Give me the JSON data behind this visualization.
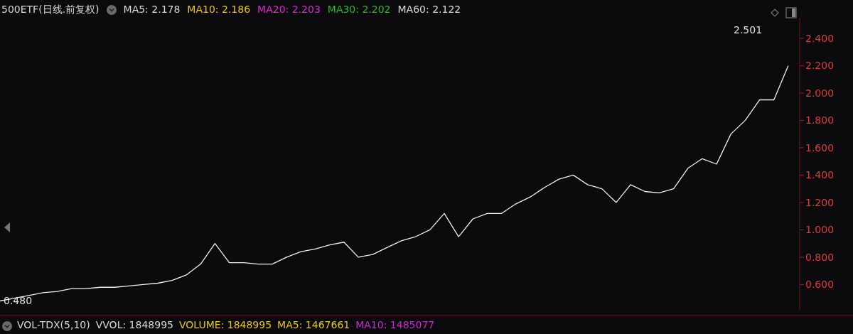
{
  "chart_data": {
    "type": "line",
    "title": "500ETF(日线.前复权)",
    "annotations": [
      "MA5: 2.178",
      "MA10: 2.186",
      "MA20: 2.203",
      "MA30: 2.202",
      "MA60: 2.122",
      "VOL-TDX(5,10)",
      "VVOL: 1848995",
      "VOLUME: 1848995",
      "MA5: 1467661",
      "MA10: 1485077",
      "2.501",
      {
        "text": "0.480",
        "y": 0.48
      }
    ],
    "categories": [
      null,
      null,
      null,
      null,
      null,
      null,
      null,
      null,
      null,
      null,
      null,
      null,
      null,
      null,
      null,
      null,
      null,
      null,
      null,
      null,
      null,
      null,
      null,
      null,
      null,
      null,
      null,
      null,
      null,
      null,
      null,
      null,
      null,
      null,
      null,
      null,
      null,
      null,
      null,
      null,
      null,
      null,
      null,
      null,
      null,
      null,
      null,
      null,
      null,
      null,
      null,
      null,
      null,
      null,
      null,
      null
    ],
    "series": [
      {
        "color": "#f0f0f0",
        "values": [
          0.48,
          0.5,
          0.52,
          0.54,
          0.55,
          0.57,
          0.57,
          0.58,
          0.58,
          0.59,
          0.6,
          0.61,
          0.63,
          0.67,
          0.75,
          0.9,
          0.76,
          0.76,
          0.75,
          0.75,
          0.8,
          0.84,
          0.86,
          0.89,
          0.91,
          0.8,
          0.82,
          0.87,
          0.92,
          0.95,
          1.0,
          1.12,
          0.95,
          1.08,
          1.12,
          1.12,
          1.19,
          1.24,
          1.31,
          1.37,
          1.4,
          1.33,
          1.3,
          1.2,
          1.33,
          1.28,
          1.27,
          1.3,
          1.45,
          1.52,
          1.48,
          1.7,
          1.8,
          1.95,
          1.95,
          2.2
        ]
      }
    ],
    "ylim": [
      0.41,
      2.55
    ],
    "yticks": [
      {
        "value": 0.6,
        "label": "0.600"
      },
      {
        "value": 0.8,
        "label": "0.800"
      },
      {
        "value": 1.0,
        "label": "1.000"
      },
      {
        "value": 1.2,
        "label": "1.200"
      },
      {
        "value": 1.4,
        "label": "1.400"
      },
      {
        "value": 1.6,
        "label": "1.600"
      },
      {
        "value": 1.8,
        "label": "1.800"
      },
      {
        "value": 2.0,
        "label": "2.000"
      },
      {
        "value": 2.2,
        "label": "2.200"
      },
      {
        "value": 2.4,
        "label": "2.400"
      }
    ],
    "grid": false,
    "tick_labels": "y"
  }
}
